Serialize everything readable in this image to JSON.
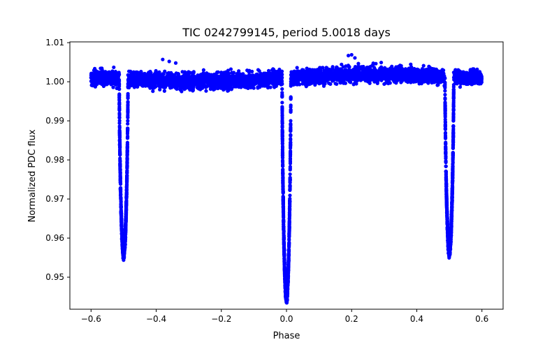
{
  "chart_data": {
    "type": "scatter",
    "title": "TIC 0242799145, period 5.0018 days",
    "xlabel": "Phase",
    "ylabel": "Normalized PDC flux",
    "xlim": [
      -0.665,
      0.665
    ],
    "ylim": [
      0.9418,
      1.0102
    ],
    "x_ticks": [
      -0.6,
      -0.4,
      -0.2,
      0.0,
      0.2,
      0.4,
      0.6
    ],
    "x_tick_labels": [
      "−0.6",
      "−0.4",
      "−0.2",
      "0.0",
      "0.2",
      "0.4",
      "0.6"
    ],
    "y_ticks": [
      0.95,
      0.96,
      0.97,
      0.98,
      0.99,
      1.0,
      1.01
    ],
    "y_tick_labels": [
      "0.95",
      "0.96",
      "0.97",
      "0.98",
      "0.99",
      "1.00",
      "1.01"
    ],
    "grid": false,
    "marker_color": "#0000ff",
    "series": [
      {
        "name": "PDC flux",
        "baseline": 1.001,
        "scatter_amplitude": 0.0018,
        "phase_range": [
          -0.6,
          0.6
        ],
        "eclipses": [
          {
            "center": -0.5,
            "depth": 0.0445,
            "half_width": 0.0135
          },
          {
            "center": 0.0,
            "depth": 0.056,
            "half_width": 0.0135
          },
          {
            "center": 0.5,
            "depth": 0.0445,
            "half_width": 0.0135
          }
        ],
        "outliers": [
          {
            "x": -0.38,
            "y": 1.0057
          },
          {
            "x": -0.36,
            "y": 1.0052
          },
          {
            "x": -0.34,
            "y": 1.0048
          },
          {
            "x": 0.19,
            "y": 1.0067
          },
          {
            "x": 0.2,
            "y": 1.0069
          },
          {
            "x": 0.21,
            "y": 1.0061
          }
        ]
      }
    ]
  }
}
